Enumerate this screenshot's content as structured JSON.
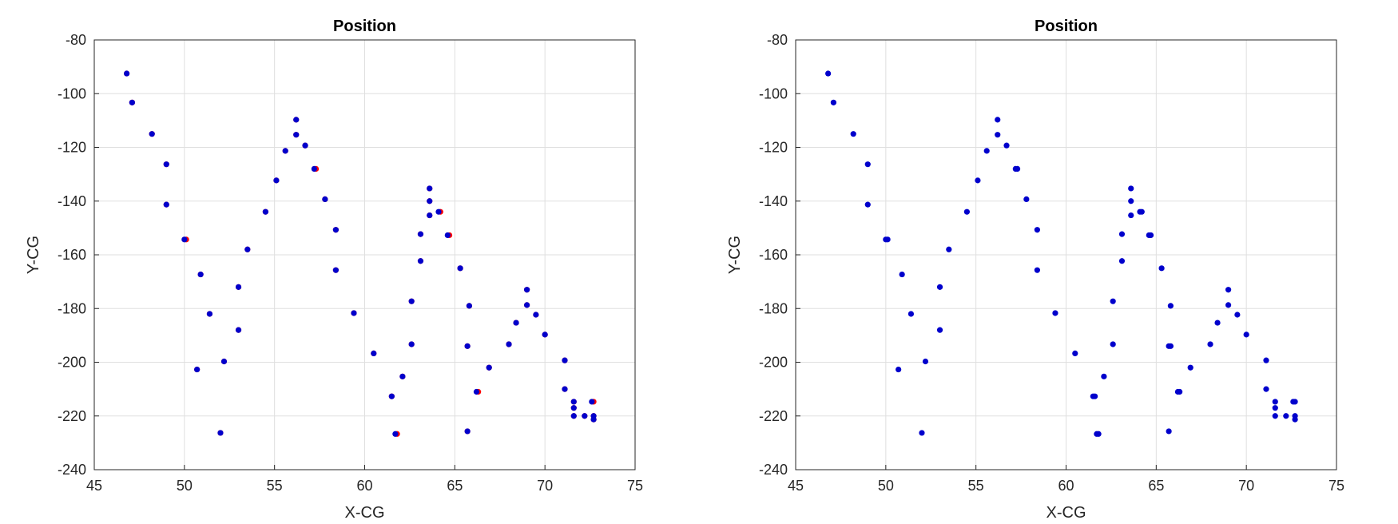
{
  "figure": {
    "panels": [
      {
        "title": "Position"
      },
      {
        "title": "Position"
      }
    ]
  },
  "colors": {
    "series_red": "#ff0000",
    "series_blue": "#0000cc"
  },
  "chart_data": [
    {
      "type": "scatter",
      "title": "Position",
      "xlabel": "X-CG",
      "ylabel": "Y-CG",
      "xlim": [
        45,
        75
      ],
      "ylim": [
        -240,
        -80
      ],
      "xticks": [
        45,
        50,
        55,
        60,
        65,
        70,
        75
      ],
      "yticks": [
        -240,
        -220,
        -200,
        -180,
        -160,
        -140,
        -120,
        -100,
        -80
      ],
      "grid": true,
      "series": [
        {
          "color": "#ff0000",
          "points": [
            [
              46.8,
              -92.5
            ],
            [
              47.1,
              -103.3
            ],
            [
              48.2,
              -115.0
            ],
            [
              49.0,
              -126.3
            ],
            [
              49.0,
              -141.3
            ],
            [
              50.1,
              -154.3
            ],
            [
              50.9,
              -167.3
            ],
            [
              51.4,
              -182.0
            ],
            [
              50.7,
              -202.7
            ],
            [
              52.2,
              -199.7
            ],
            [
              52.0,
              -226.3
            ],
            [
              53.0,
              -172.0
            ],
            [
              53.0,
              -188.0
            ],
            [
              53.5,
              -158.0
            ],
            [
              54.5,
              -144.0
            ],
            [
              55.1,
              -132.3
            ],
            [
              55.6,
              -121.3
            ],
            [
              56.2,
              -109.7
            ],
            [
              56.2,
              -115.3
            ],
            [
              56.7,
              -119.3
            ],
            [
              57.3,
              -128.0
            ],
            [
              57.8,
              -139.3
            ],
            [
              58.4,
              -150.7
            ],
            [
              58.4,
              -165.7
            ],
            [
              59.4,
              -181.7
            ],
            [
              60.5,
              -196.7
            ],
            [
              61.5,
              -212.7
            ],
            [
              61.8,
              -226.7
            ],
            [
              62.1,
              -205.3
            ],
            [
              62.6,
              -177.3
            ],
            [
              62.6,
              -193.3
            ],
            [
              63.1,
              -152.3
            ],
            [
              63.1,
              -162.3
            ],
            [
              63.6,
              -135.3
            ],
            [
              63.6,
              -140.0
            ],
            [
              63.6,
              -145.3
            ],
            [
              64.2,
              -144.0
            ],
            [
              64.7,
              -152.7
            ],
            [
              65.3,
              -165.0
            ],
            [
              65.7,
              -194.0
            ],
            [
              65.8,
              -179.0
            ],
            [
              65.7,
              -225.7
            ],
            [
              66.3,
              -211.0
            ],
            [
              66.9,
              -202.0
            ],
            [
              68.0,
              -193.3
            ],
            [
              68.4,
              -185.3
            ],
            [
              69.0,
              -173.0
            ],
            [
              69.0,
              -178.7
            ],
            [
              69.5,
              -182.3
            ],
            [
              70.0,
              -189.7
            ],
            [
              71.1,
              -199.3
            ],
            [
              71.1,
              -210.0
            ],
            [
              71.6,
              -214.7
            ],
            [
              71.6,
              -217.0
            ],
            [
              71.6,
              -220.0
            ],
            [
              72.2,
              -220.0
            ],
            [
              72.7,
              -214.7
            ],
            [
              72.7,
              -220.0
            ],
            [
              72.7,
              -221.3
            ]
          ]
        },
        {
          "color": "#0000cc",
          "points": [
            [
              46.8,
              -92.5
            ],
            [
              47.1,
              -103.3
            ],
            [
              48.2,
              -115.0
            ],
            [
              49.0,
              -126.3
            ],
            [
              49.0,
              -141.3
            ],
            [
              50.0,
              -154.3
            ],
            [
              50.9,
              -167.3
            ],
            [
              51.4,
              -182.0
            ],
            [
              50.7,
              -202.7
            ],
            [
              52.2,
              -199.7
            ],
            [
              52.0,
              -226.3
            ],
            [
              53.0,
              -172.0
            ],
            [
              53.0,
              -188.0
            ],
            [
              53.5,
              -158.0
            ],
            [
              54.5,
              -144.0
            ],
            [
              55.1,
              -132.3
            ],
            [
              55.6,
              -121.3
            ],
            [
              56.2,
              -109.7
            ],
            [
              56.2,
              -115.3
            ],
            [
              56.7,
              -119.3
            ],
            [
              57.2,
              -128.0
            ],
            [
              57.8,
              -139.3
            ],
            [
              58.4,
              -150.7
            ],
            [
              58.4,
              -165.7
            ],
            [
              59.4,
              -181.7
            ],
            [
              60.5,
              -196.7
            ],
            [
              61.5,
              -212.7
            ],
            [
              61.7,
              -226.7
            ],
            [
              62.1,
              -205.3
            ],
            [
              62.6,
              -177.3
            ],
            [
              62.6,
              -193.3
            ],
            [
              63.1,
              -152.3
            ],
            [
              63.1,
              -162.3
            ],
            [
              63.6,
              -135.3
            ],
            [
              63.6,
              -140.0
            ],
            [
              63.6,
              -145.3
            ],
            [
              64.1,
              -144.0
            ],
            [
              64.6,
              -152.7
            ],
            [
              65.3,
              -165.0
            ],
            [
              65.7,
              -194.0
            ],
            [
              65.8,
              -179.0
            ],
            [
              65.7,
              -225.7
            ],
            [
              66.2,
              -211.0
            ],
            [
              66.9,
              -202.0
            ],
            [
              68.0,
              -193.3
            ],
            [
              68.4,
              -185.3
            ],
            [
              69.0,
              -173.0
            ],
            [
              69.0,
              -178.7
            ],
            [
              69.5,
              -182.3
            ],
            [
              70.0,
              -189.7
            ],
            [
              71.1,
              -199.3
            ],
            [
              71.1,
              -210.0
            ],
            [
              71.6,
              -214.7
            ],
            [
              71.6,
              -217.0
            ],
            [
              71.6,
              -220.0
            ],
            [
              72.2,
              -220.0
            ],
            [
              72.6,
              -214.7
            ],
            [
              72.7,
              -220.0
            ],
            [
              72.7,
              -221.3
            ]
          ]
        }
      ]
    },
    {
      "type": "scatter",
      "title": "Position",
      "xlabel": "X-CG",
      "ylabel": "Y-CG",
      "xlim": [
        45,
        75
      ],
      "ylim": [
        -240,
        -80
      ],
      "xticks": [
        45,
        50,
        55,
        60,
        65,
        70,
        75
      ],
      "yticks": [
        -240,
        -220,
        -200,
        -180,
        -160,
        -140,
        -120,
        -100,
        -80
      ],
      "grid": true,
      "series": [
        {
          "color": "#0000cc",
          "points": [
            [
              46.8,
              -92.5
            ],
            [
              47.1,
              -103.3
            ],
            [
              48.2,
              -115.0
            ],
            [
              49.0,
              -126.3
            ],
            [
              49.0,
              -141.3
            ],
            [
              50.0,
              -154.3
            ],
            [
              50.1,
              -154.3
            ],
            [
              50.9,
              -167.3
            ],
            [
              51.4,
              -182.0
            ],
            [
              50.7,
              -202.7
            ],
            [
              52.2,
              -199.7
            ],
            [
              52.0,
              -226.3
            ],
            [
              53.0,
              -172.0
            ],
            [
              53.0,
              -188.0
            ],
            [
              53.5,
              -158.0
            ],
            [
              54.5,
              -144.0
            ],
            [
              55.1,
              -132.3
            ],
            [
              55.6,
              -121.3
            ],
            [
              56.2,
              -109.7
            ],
            [
              56.2,
              -115.3
            ],
            [
              56.7,
              -119.3
            ],
            [
              57.2,
              -128.0
            ],
            [
              57.3,
              -128.0
            ],
            [
              57.8,
              -139.3
            ],
            [
              58.4,
              -150.7
            ],
            [
              58.4,
              -165.7
            ],
            [
              59.4,
              -181.7
            ],
            [
              60.5,
              -196.7
            ],
            [
              61.5,
              -212.7
            ],
            [
              61.6,
              -212.7
            ],
            [
              61.7,
              -226.7
            ],
            [
              61.8,
              -226.7
            ],
            [
              62.1,
              -205.3
            ],
            [
              62.6,
              -177.3
            ],
            [
              62.6,
              -193.3
            ],
            [
              63.1,
              -152.3
            ],
            [
              63.1,
              -162.3
            ],
            [
              63.6,
              -135.3
            ],
            [
              63.6,
              -140.0
            ],
            [
              63.6,
              -145.3
            ],
            [
              64.1,
              -144.0
            ],
            [
              64.2,
              -144.0
            ],
            [
              64.6,
              -152.7
            ],
            [
              64.7,
              -152.7
            ],
            [
              65.3,
              -165.0
            ],
            [
              65.7,
              -194.0
            ],
            [
              65.8,
              -194.0
            ],
            [
              65.8,
              -179.0
            ],
            [
              65.7,
              -225.7
            ],
            [
              66.2,
              -211.0
            ],
            [
              66.3,
              -211.0
            ],
            [
              66.9,
              -202.0
            ],
            [
              68.0,
              -193.3
            ],
            [
              68.4,
              -185.3
            ],
            [
              69.0,
              -173.0
            ],
            [
              69.0,
              -178.7
            ],
            [
              69.5,
              -182.3
            ],
            [
              70.0,
              -189.7
            ],
            [
              71.1,
              -199.3
            ],
            [
              71.1,
              -210.0
            ],
            [
              71.6,
              -214.7
            ],
            [
              71.6,
              -217.0
            ],
            [
              71.6,
              -220.0
            ],
            [
              72.2,
              -220.0
            ],
            [
              72.6,
              -214.7
            ],
            [
              72.7,
              -214.7
            ],
            [
              72.7,
              -220.0
            ],
            [
              72.7,
              -221.3
            ]
          ]
        }
      ]
    }
  ]
}
